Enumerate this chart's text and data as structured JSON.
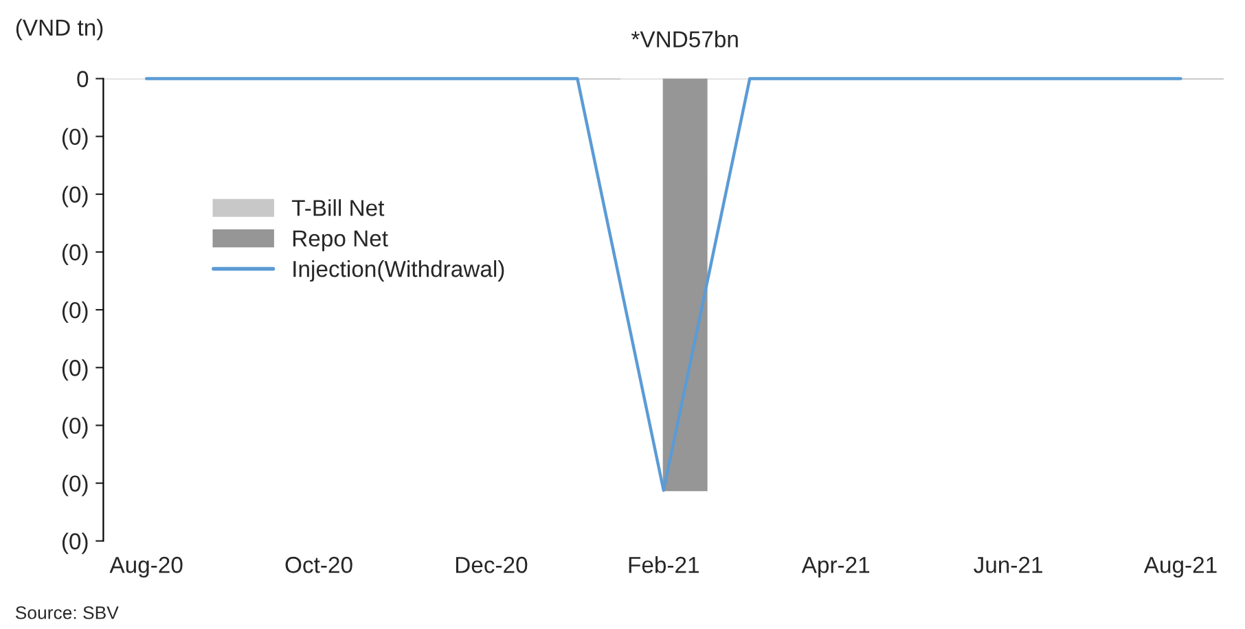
{
  "chart_data": {
    "type": "bar",
    "ylabel": "(VND tn)",
    "categories": [
      "Aug-20",
      null,
      "Oct-20",
      null,
      "Dec-20",
      null,
      "Feb-21",
      null,
      "Apr-21",
      null,
      "Jun-21",
      null,
      "Aug-21"
    ],
    "series": [
      {
        "name": "T-Bill Net",
        "color": "#c8c8c8",
        "values": [
          0,
          0,
          0,
          0,
          0,
          0,
          0,
          0,
          0,
          0,
          0,
          0,
          0
        ]
      },
      {
        "name": "Repo Net",
        "color": "#969696",
        "values": [
          0,
          0,
          0,
          0,
          0,
          0,
          -0.057,
          0,
          0,
          0,
          0,
          0,
          0
        ]
      },
      {
        "name": "Injection(Withdrawal)",
        "type": "line",
        "color": "#5b9bd5",
        "values": [
          0,
          0,
          0,
          0,
          0,
          0,
          -0.057,
          0,
          0,
          0,
          0,
          0,
          0
        ]
      }
    ],
    "ylim": [
      -0.064,
      0
    ],
    "yticks": [
      0,
      {
        "value": -0.008,
        "label": "(0)"
      },
      {
        "value": -0.016,
        "label": "(0)"
      },
      {
        "value": -0.024,
        "label": "(0)"
      },
      {
        "value": -0.032,
        "label": "(0)"
      },
      {
        "value": -0.04,
        "label": "(0)"
      },
      {
        "value": -0.048,
        "label": "(0)"
      },
      {
        "value": -0.056,
        "label": "(0)"
      },
      {
        "value": -0.064,
        "label": "(0)"
      }
    ],
    "grid": false,
    "legend": "left",
    "annotations": [
      "*VND57bn",
      "Source: SBV"
    ]
  }
}
